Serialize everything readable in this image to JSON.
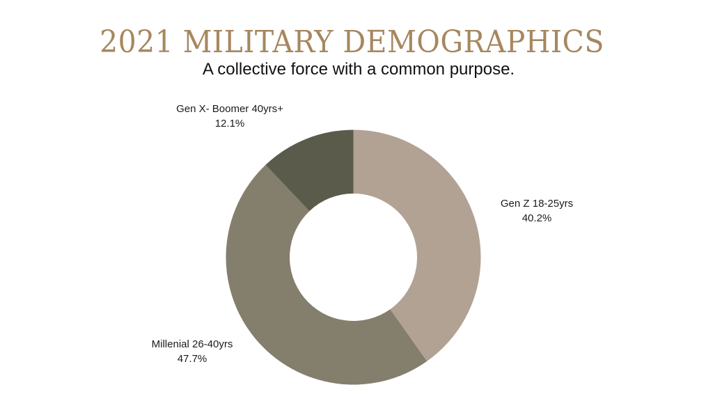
{
  "header": {
    "title": "2021 MILITARY DEMOGRAPHICS",
    "subtitle": "A collective force with a common purpose."
  },
  "colors": {
    "title": "#a6875e",
    "subtitle": "#111111",
    "gen_z": "#b2a293",
    "millenial": "#847e6c",
    "gen_x_boomer": "#5a5b4a"
  },
  "labels": {
    "gen_z": {
      "name": "Gen Z 18-25yrs",
      "pct": "40.2%"
    },
    "millenial": {
      "name": "Millenial 26-40yrs",
      "pct": "47.7%"
    },
    "gen_x_boomer": {
      "name": "Gen X- Boomer 40yrs+",
      "pct": "12.1%"
    }
  },
  "chart_data": {
    "type": "pie",
    "subtype": "donut",
    "title": "2021 MILITARY DEMOGRAPHICS",
    "subtitle": "A collective force with a common purpose.",
    "categories": [
      "Gen Z 18-25yrs",
      "Millenial 26-40yrs",
      "Gen X- Boomer 40yrs+"
    ],
    "values": [
      40.2,
      47.7,
      12.1
    ],
    "unit": "%",
    "colors": [
      "#b2a293",
      "#847e6c",
      "#5a5b4a"
    ],
    "start_angle_deg": 0,
    "direction": "clockwise",
    "hole_ratio": 0.5,
    "legend": "none",
    "data_labels": "outside, category name and percentage"
  }
}
